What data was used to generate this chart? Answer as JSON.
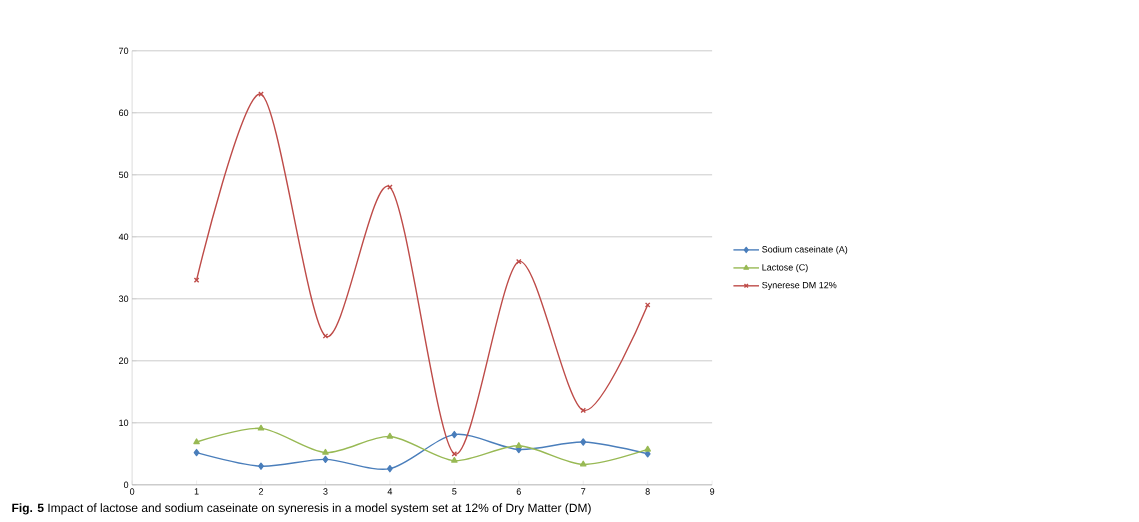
{
  "chart_data": {
    "type": "line",
    "x": [
      1,
      2,
      3,
      4,
      5,
      6,
      7,
      8
    ],
    "series": [
      {
        "name": "Sodium caseinate (A)",
        "color": "#4a7ebb",
        "marker": "diamond",
        "values": [
          5.2,
          3,
          4.1,
          2.6,
          8.1,
          5.7,
          6.9,
          5
        ]
      },
      {
        "name": "Lactose (C)",
        "color": "#98b954",
        "marker": "triangle",
        "values": [
          6.9,
          9.1,
          5.2,
          7.8,
          3.9,
          6.3,
          3.3,
          5.7
        ]
      },
      {
        "name": "Synerese DM 12%",
        "color": "#be4b48",
        "marker": "cross",
        "values": [
          33,
          63,
          24,
          48,
          5,
          36,
          12,
          29
        ]
      }
    ],
    "xlim": [
      0,
      9
    ],
    "xticks": [
      0,
      1,
      2,
      3,
      4,
      5,
      6,
      7,
      8,
      9
    ],
    "ylim": [
      0,
      70
    ],
    "yticks": [
      0,
      10,
      20,
      30,
      40,
      50,
      60,
      70
    ],
    "grid": "y",
    "legend": "right",
    "line_style": "solid",
    "annotations": [
      "**Fig. 5** Impact of lactose and sodium caseinate on syneresis in a model system set at 12% of Dry Matter (DM)"
    ]
  }
}
